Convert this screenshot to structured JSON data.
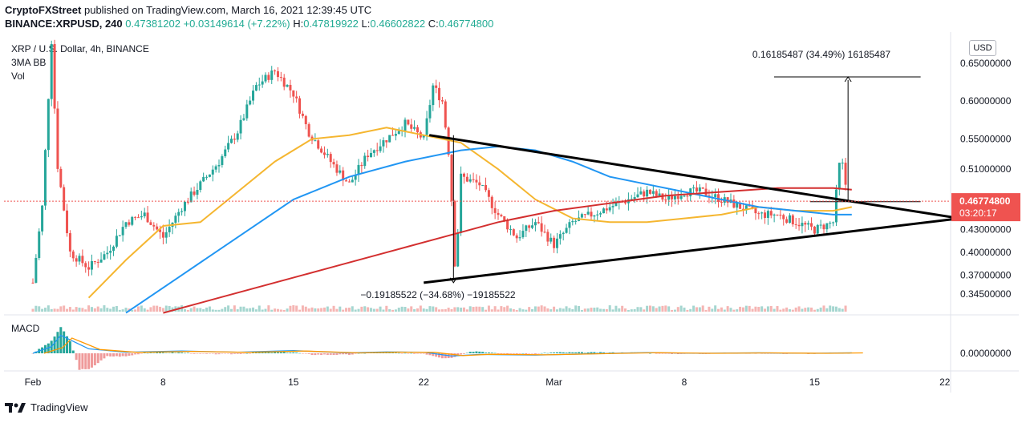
{
  "header": {
    "publisher": "CryptoFXStreet",
    "published_text": "published on TradingView.com, March 16, 2021 12:39:45 UTC",
    "symbol": "BINANCE:XRPUSD, 240",
    "open": "0.47381202",
    "change": "+0.03149614 (+7.22%)",
    "high_label": "H:",
    "high": "0.47819922",
    "low_label": "L:",
    "low": "0.46602822",
    "close_label": "C:",
    "close": "0.46774800"
  },
  "legend": {
    "title": "XRP / U.S. Dollar, 4h, BINANCE",
    "indicator1": "3MA BB",
    "indicator2": "Vol",
    "macd": "MACD"
  },
  "price_scale_button": "USD",
  "footer": {
    "brand": "TradingView"
  },
  "colors": {
    "up": "#26a69a",
    "down": "#ef5350",
    "ma_fast": "#f5b630",
    "ma_mid": "#2196f3",
    "ma_slow": "#d32f2f",
    "triangle": "#000000",
    "last_price_bg": "#ef5350"
  },
  "chart_data": {
    "type": "candlestick",
    "y_ticks": [
      "0.65000000",
      "0.60000000",
      "0.55000000",
      "0.51000000",
      "0.43000000",
      "0.40000000",
      "0.37000000",
      "0.34500000"
    ],
    "y_tick_values": [
      0.65,
      0.6,
      0.55,
      0.51,
      0.43,
      0.4,
      0.37,
      0.345
    ],
    "macd_tick": "0.00000000",
    "x_ticks": [
      "Feb",
      "8",
      "15",
      "22",
      "Mar",
      "8",
      "15",
      "22"
    ],
    "x_tick_days": [
      0,
      7,
      14,
      21,
      28,
      35,
      42,
      49
    ],
    "last_price": "0.46774800",
    "countdown": "03:20:17",
    "annotations": {
      "upper_measure": "0.16185487 (34.49%) 16185487",
      "lower_measure": "−0.19185522 (−34.68%) −19185522"
    },
    "ylim": [
      0.32,
      0.68
    ],
    "price_path": [
      [
        0,
        0.36
      ],
      [
        0.5,
        0.46
      ],
      [
        1,
        0.68
      ],
      [
        1.3,
        0.52
      ],
      [
        2,
        0.4
      ],
      [
        3,
        0.38
      ],
      [
        4,
        0.4
      ],
      [
        5,
        0.44
      ],
      [
        6,
        0.45
      ],
      [
        7,
        0.42
      ],
      [
        8,
        0.46
      ],
      [
        9,
        0.49
      ],
      [
        10,
        0.52
      ],
      [
        11,
        0.56
      ],
      [
        12,
        0.62
      ],
      [
        13,
        0.64
      ],
      [
        14,
        0.61
      ],
      [
        14.8,
        0.56
      ],
      [
        16,
        0.52
      ],
      [
        17,
        0.49
      ],
      [
        18,
        0.53
      ],
      [
        19,
        0.55
      ],
      [
        20,
        0.57
      ],
      [
        21,
        0.55
      ],
      [
        21.5,
        0.62
      ],
      [
        22,
        0.6
      ],
      [
        22.4,
        0.52
      ],
      [
        22.7,
        0.37
      ],
      [
        23,
        0.5
      ],
      [
        24,
        0.49
      ],
      [
        25,
        0.45
      ],
      [
        26,
        0.42
      ],
      [
        27,
        0.44
      ],
      [
        28,
        0.41
      ],
      [
        29,
        0.44
      ],
      [
        30,
        0.45
      ],
      [
        31,
        0.46
      ],
      [
        32,
        0.47
      ],
      [
        33,
        0.48
      ],
      [
        34,
        0.47
      ],
      [
        35,
        0.48
      ],
      [
        36,
        0.48
      ],
      [
        37,
        0.47
      ],
      [
        38,
        0.46
      ],
      [
        39,
        0.45
      ],
      [
        40,
        0.45
      ],
      [
        41,
        0.44
      ],
      [
        42,
        0.43
      ],
      [
        43,
        0.44
      ],
      [
        43.4,
        0.53
      ],
      [
        43.8,
        0.47
      ]
    ],
    "series": [
      {
        "name": "ma_fast",
        "values": [
          [
            3,
            0.34
          ],
          [
            5,
            0.39
          ],
          [
            7,
            0.435
          ],
          [
            9,
            0.44
          ],
          [
            11,
            0.48
          ],
          [
            13,
            0.52
          ],
          [
            15,
            0.55
          ],
          [
            17,
            0.555
          ],
          [
            19,
            0.565
          ],
          [
            21,
            0.555
          ],
          [
            23,
            0.545
          ],
          [
            25,
            0.51
          ],
          [
            27,
            0.47
          ],
          [
            29,
            0.445
          ],
          [
            31,
            0.44
          ],
          [
            33,
            0.44
          ],
          [
            35,
            0.445
          ],
          [
            37,
            0.45
          ],
          [
            39,
            0.46
          ],
          [
            41,
            0.455
          ],
          [
            43,
            0.455
          ],
          [
            44,
            0.46
          ]
        ]
      },
      {
        "name": "ma_mid",
        "values": [
          [
            5,
            0.32
          ],
          [
            8,
            0.37
          ],
          [
            11,
            0.42
          ],
          [
            14,
            0.47
          ],
          [
            17,
            0.5
          ],
          [
            20,
            0.52
          ],
          [
            23,
            0.535
          ],
          [
            25,
            0.54
          ],
          [
            27,
            0.535
          ],
          [
            29,
            0.52
          ],
          [
            31,
            0.5
          ],
          [
            33,
            0.49
          ],
          [
            35,
            0.48
          ],
          [
            37,
            0.47
          ],
          [
            39,
            0.46
          ],
          [
            41,
            0.455
          ],
          [
            43,
            0.45
          ],
          [
            44,
            0.45
          ]
        ]
      },
      {
        "name": "ma_slow",
        "values": [
          [
            7,
            0.32
          ],
          [
            10,
            0.34
          ],
          [
            13,
            0.36
          ],
          [
            16,
            0.38
          ],
          [
            19,
            0.4
          ],
          [
            22,
            0.42
          ],
          [
            25,
            0.44
          ],
          [
            28,
            0.455
          ],
          [
            31,
            0.465
          ],
          [
            34,
            0.475
          ],
          [
            37,
            0.48
          ],
          [
            40,
            0.485
          ],
          [
            43,
            0.485
          ],
          [
            44,
            0.483
          ]
        ]
      }
    ],
    "triangle": [
      [
        [
          21.3,
          0.555
        ],
        [
          49.8,
          0.445
        ]
      ],
      [
        [
          21.0,
          0.36
        ],
        [
          49.8,
          0.445
        ]
      ]
    ],
    "measure_upper": {
      "x": 43.8,
      "y0": 0.467,
      "y1": 0.632,
      "xr": 47.7
    },
    "measure_lower": {
      "x": 22.6,
      "y0": 0.555,
      "y1": 0.36
    },
    "macd_line": [
      [
        0,
        0.0
      ],
      [
        1,
        0.3
      ],
      [
        1.5,
        0.8
      ],
      [
        2,
        0.6
      ],
      [
        3,
        0.2
      ],
      [
        5,
        0.05
      ],
      [
        8,
        0.1
      ],
      [
        11,
        0.05
      ],
      [
        14,
        0.12
      ],
      [
        17,
        0.02
      ],
      [
        19,
        0.06
      ],
      [
        21,
        0.05
      ],
      [
        22.5,
        -0.12
      ],
      [
        24,
        -0.05
      ],
      [
        27,
        -0.08
      ],
      [
        30,
        -0.02
      ],
      [
        33,
        0.03
      ],
      [
        36,
        0.0
      ],
      [
        39,
        0.02
      ],
      [
        42,
        0.0
      ],
      [
        44,
        0.02
      ]
    ]
  }
}
